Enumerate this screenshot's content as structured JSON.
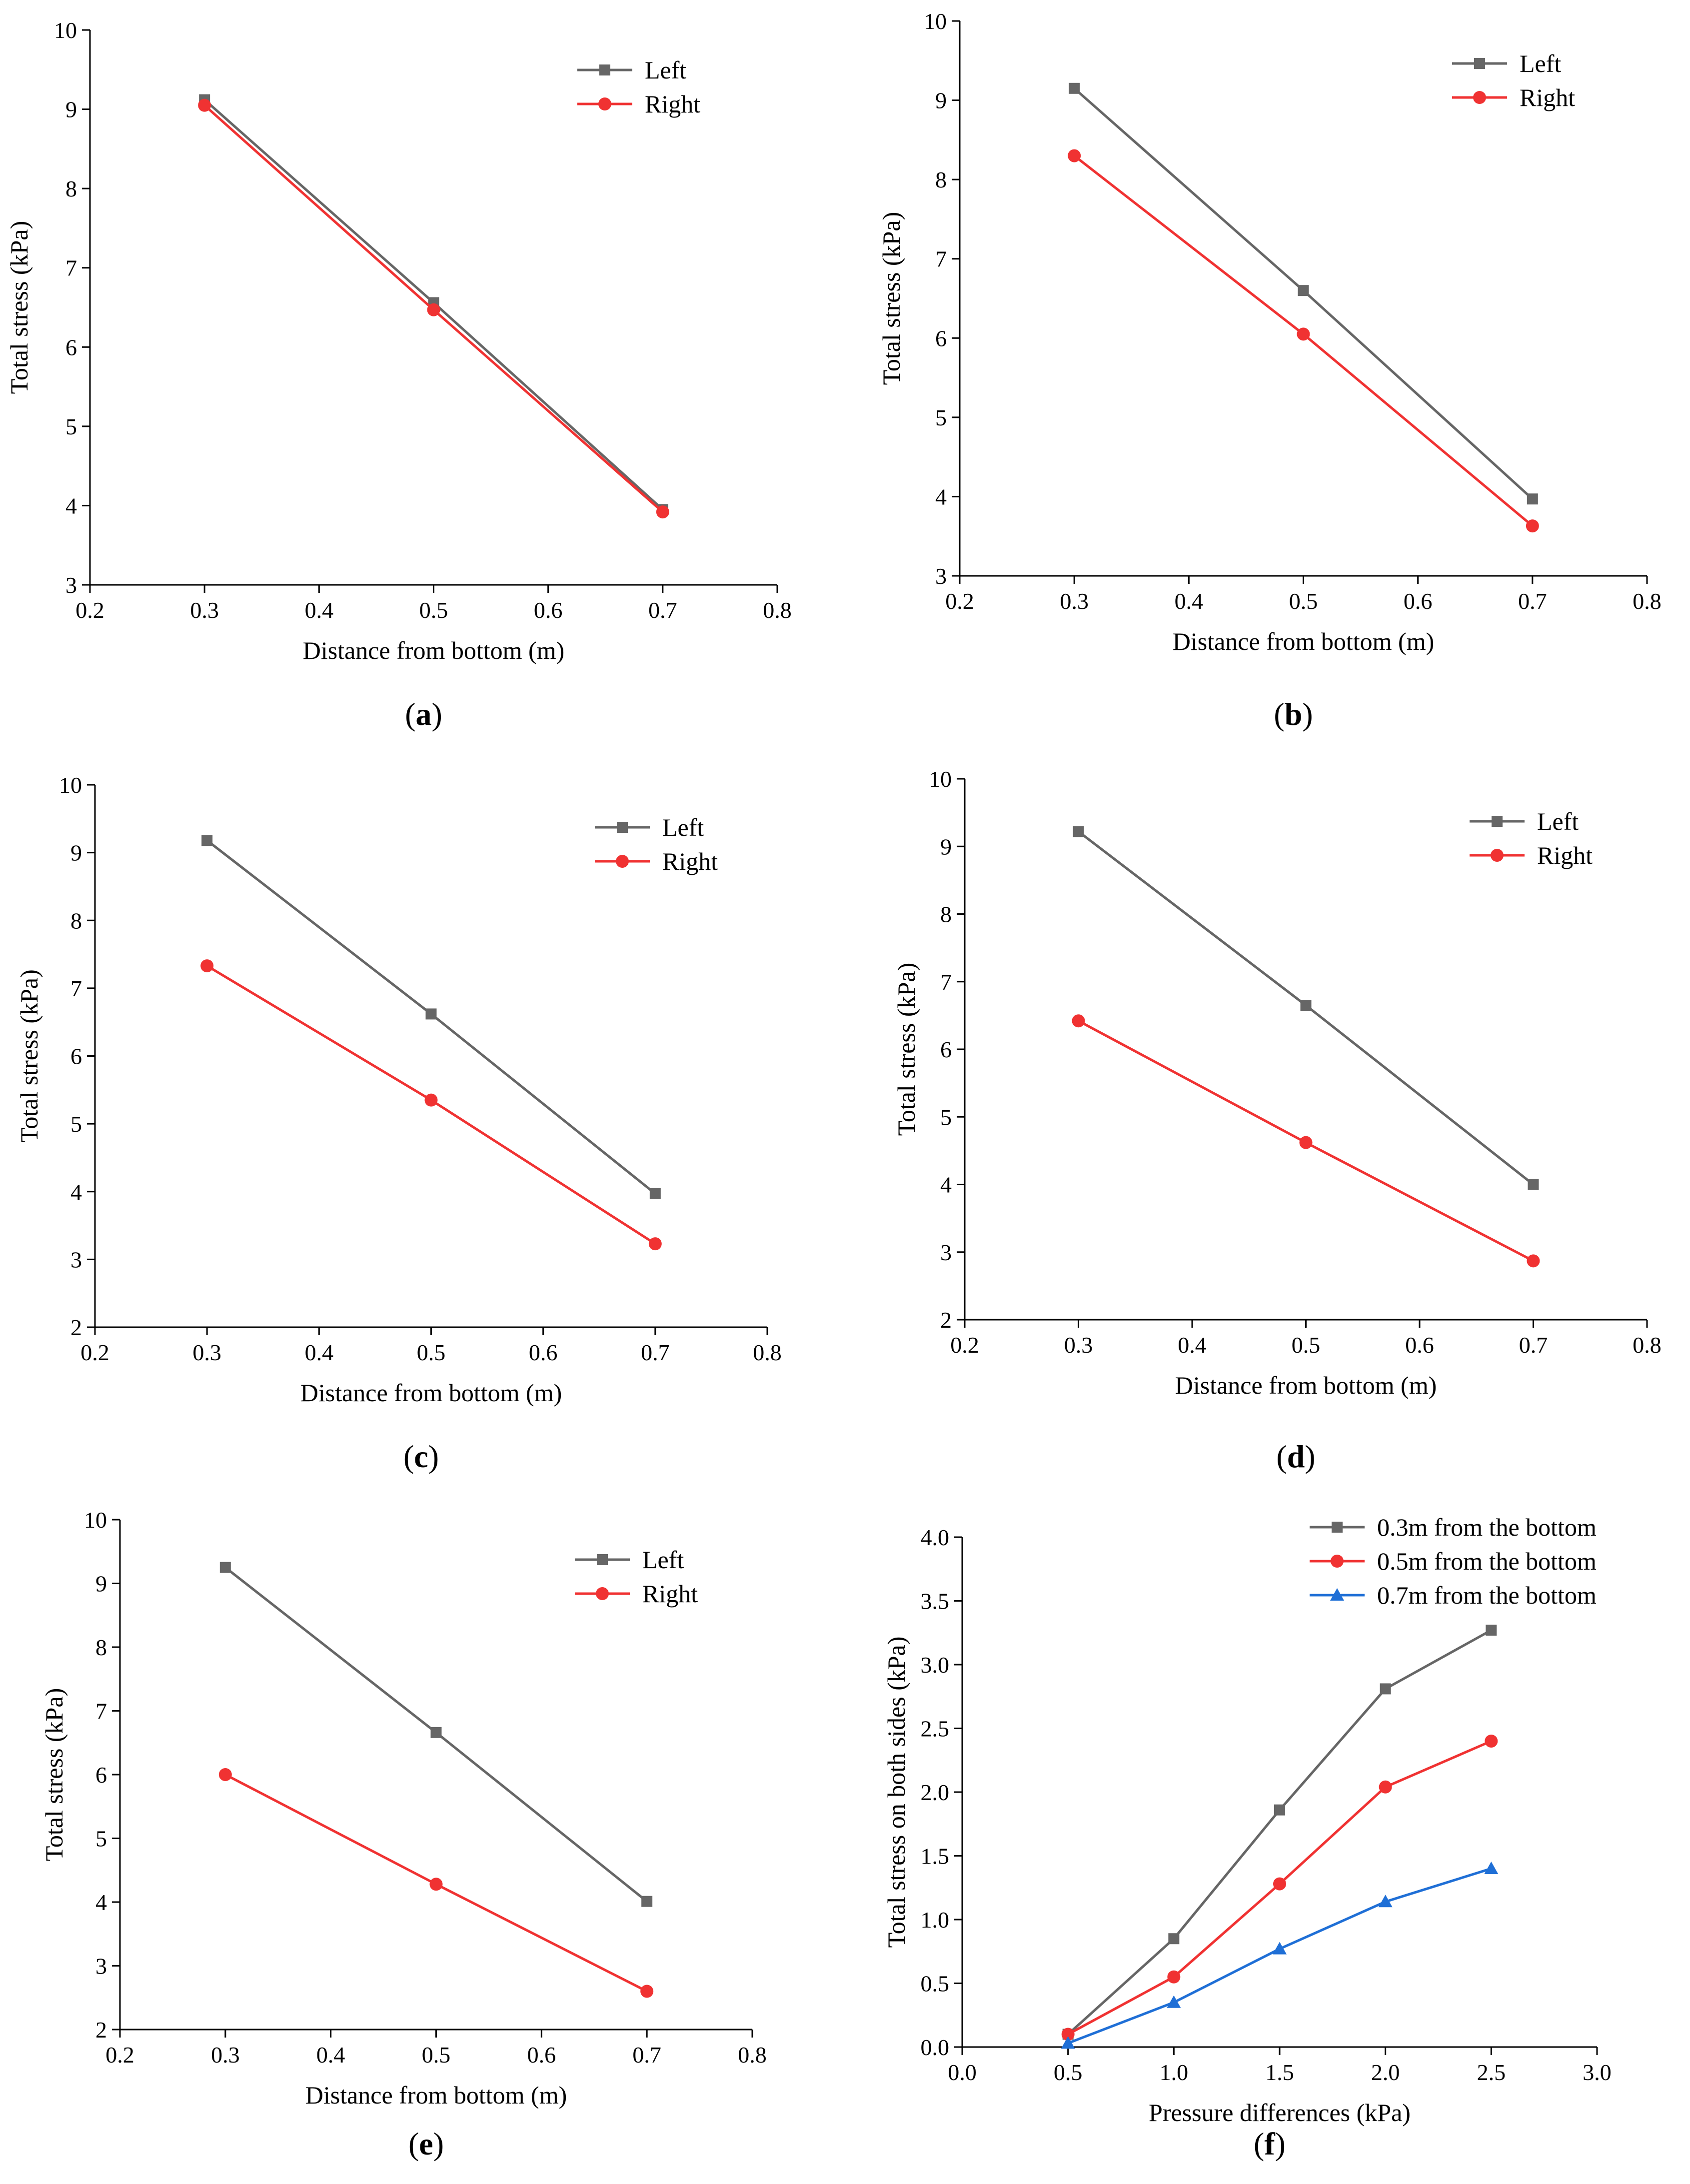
{
  "figure": {
    "title": ""
  },
  "chart_data": [
    {
      "id": "a",
      "type": "line",
      "panel_label": "a",
      "xlabel": "Distance from bottom (m)",
      "ylabel": "Total stress (kPa)",
      "xlim": [
        0.2,
        0.8
      ],
      "ylim": [
        3,
        10
      ],
      "xticks": [
        0.2,
        0.3,
        0.4,
        0.5,
        0.6,
        0.7,
        0.8
      ],
      "yticks": [
        3,
        4,
        5,
        6,
        7,
        8,
        9,
        10
      ],
      "x": [
        0.3,
        0.5,
        0.7
      ],
      "legend_position": "top-right",
      "series": [
        {
          "name": "Left",
          "marker": "square",
          "color": "#666666",
          "values": [
            9.12,
            6.56,
            3.95
          ]
        },
        {
          "name": "Right",
          "marker": "circle",
          "color": "#f03232",
          "values": [
            9.05,
            6.47,
            3.92
          ]
        }
      ]
    },
    {
      "id": "b",
      "type": "line",
      "panel_label": "b",
      "xlabel": "Distance from bottom (m)",
      "ylabel": "Total stress (kPa)",
      "xlim": [
        0.2,
        0.8
      ],
      "ylim": [
        3,
        10
      ],
      "xticks": [
        0.2,
        0.3,
        0.4,
        0.5,
        0.6,
        0.7,
        0.8
      ],
      "yticks": [
        3,
        4,
        5,
        6,
        7,
        8,
        9,
        10
      ],
      "x": [
        0.3,
        0.5,
        0.7
      ],
      "legend_position": "top-right",
      "series": [
        {
          "name": "Left",
          "marker": "square",
          "color": "#666666",
          "values": [
            9.15,
            6.6,
            3.97
          ]
        },
        {
          "name": "Right",
          "marker": "circle",
          "color": "#f03232",
          "values": [
            8.3,
            6.05,
            3.63
          ]
        }
      ]
    },
    {
      "id": "c",
      "type": "line",
      "panel_label": "c",
      "xlabel": "Distance from bottom (m)",
      "ylabel": "Total stress (kPa)",
      "xlim": [
        0.2,
        0.8
      ],
      "ylim": [
        2,
        10
      ],
      "xticks": [
        0.2,
        0.3,
        0.4,
        0.5,
        0.6,
        0.7,
        0.8
      ],
      "yticks": [
        2,
        3,
        4,
        5,
        6,
        7,
        8,
        9,
        10
      ],
      "x": [
        0.3,
        0.5,
        0.7
      ],
      "legend_position": "top-right",
      "series": [
        {
          "name": "Left",
          "marker": "square",
          "color": "#666666",
          "values": [
            9.18,
            6.62,
            3.97
          ]
        },
        {
          "name": "Right",
          "marker": "circle",
          "color": "#f03232",
          "values": [
            7.33,
            5.35,
            3.23
          ]
        }
      ]
    },
    {
      "id": "d",
      "type": "line",
      "panel_label": "d",
      "xlabel": "Distance from bottom (m)",
      "ylabel": "Total stress (kPa)",
      "xlim": [
        0.2,
        0.8
      ],
      "ylim": [
        2,
        10
      ],
      "xticks": [
        0.2,
        0.3,
        0.4,
        0.5,
        0.6,
        0.7,
        0.8
      ],
      "yticks": [
        2,
        3,
        4,
        5,
        6,
        7,
        8,
        9,
        10
      ],
      "x": [
        0.3,
        0.5,
        0.7
      ],
      "legend_position": "top-right",
      "series": [
        {
          "name": "Left",
          "marker": "square",
          "color": "#666666",
          "values": [
            9.22,
            6.65,
            4.0
          ]
        },
        {
          "name": "Right",
          "marker": "circle",
          "color": "#f03232",
          "values": [
            6.42,
            4.62,
            2.87
          ]
        }
      ]
    },
    {
      "id": "e",
      "type": "line",
      "panel_label": "e",
      "xlabel": "Distance from bottom (m)",
      "ylabel": "Total stress (kPa)",
      "xlim": [
        0.2,
        0.8
      ],
      "ylim": [
        2,
        10
      ],
      "xticks": [
        0.2,
        0.3,
        0.4,
        0.5,
        0.6,
        0.7,
        0.8
      ],
      "yticks": [
        2,
        3,
        4,
        5,
        6,
        7,
        8,
        9,
        10
      ],
      "x": [
        0.3,
        0.5,
        0.7
      ],
      "legend_position": "top-right",
      "series": [
        {
          "name": "Left",
          "marker": "square",
          "color": "#666666",
          "values": [
            9.25,
            6.66,
            4.01
          ]
        },
        {
          "name": "Right",
          "marker": "circle",
          "color": "#f03232",
          "values": [
            6.0,
            4.28,
            2.6
          ]
        }
      ]
    },
    {
      "id": "f",
      "type": "line",
      "panel_label": "f",
      "xlabel": "Pressure differences (kPa)",
      "ylabel": "Total stress on both sides (kPa)",
      "xlim": [
        0.0,
        3.0
      ],
      "ylim": [
        0.0,
        4.0
      ],
      "xticks": [
        0.0,
        0.5,
        1.0,
        1.5,
        2.0,
        2.5,
        3.0
      ],
      "yticks": [
        0.0,
        0.5,
        1.0,
        1.5,
        2.0,
        2.5,
        3.0,
        3.5,
        4.0
      ],
      "x": [
        0.5,
        1.0,
        1.5,
        2.0,
        2.5
      ],
      "legend_position": "top-right",
      "series": [
        {
          "name": "0.3m from the bottom",
          "marker": "square",
          "color": "#666666",
          "values": [
            0.1,
            0.85,
            1.86,
            2.81,
            3.27
          ]
        },
        {
          "name": "0.5m from the bottom",
          "marker": "circle",
          "color": "#f03232",
          "values": [
            0.1,
            0.55,
            1.28,
            2.04,
            2.4
          ]
        },
        {
          "name": "0.7m from the bottom",
          "marker": "triangle",
          "color": "#1f6fd6",
          "values": [
            0.03,
            0.35,
            0.77,
            1.14,
            1.4
          ]
        }
      ]
    }
  ]
}
